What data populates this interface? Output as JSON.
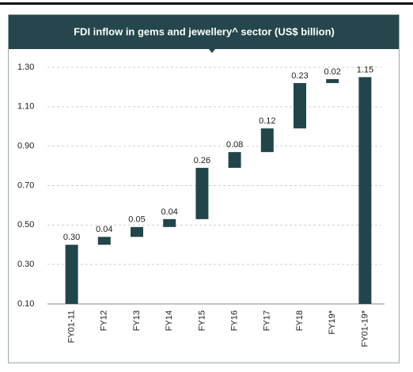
{
  "chart_data": {
    "type": "waterfall",
    "title": "FDI inflow in gems and jewellery^ sector (US$ billion)",
    "categories": [
      "FY01-11",
      "FY12",
      "FY13",
      "FY14",
      "FY15",
      "FY16",
      "FY17",
      "FY18",
      "FY19*",
      "FY01-19*"
    ],
    "values": [
      0.3,
      0.04,
      0.05,
      0.04,
      0.26,
      0.08,
      0.12,
      0.23,
      0.02,
      1.15
    ],
    "value_labels": [
      "0.30",
      "0.04",
      "0.05",
      "0.04",
      "0.26",
      "0.08",
      "0.12",
      "0.23",
      "0.02",
      "1.15"
    ],
    "color": "#21454b",
    "ylim": [
      0.1,
      1.3
    ],
    "yticks": [
      {
        "value": 0.1,
        "label": "0.10"
      },
      {
        "value": 0.3,
        "label": "0.30"
      },
      {
        "value": 0.5,
        "label": "0.50"
      },
      {
        "value": 0.7,
        "label": "0.70"
      },
      {
        "value": 0.9,
        "label": "0.90"
      },
      {
        "value": 1.1,
        "label": "1.10"
      },
      {
        "value": 1.3,
        "label": "1.30"
      }
    ],
    "grid": true
  }
}
